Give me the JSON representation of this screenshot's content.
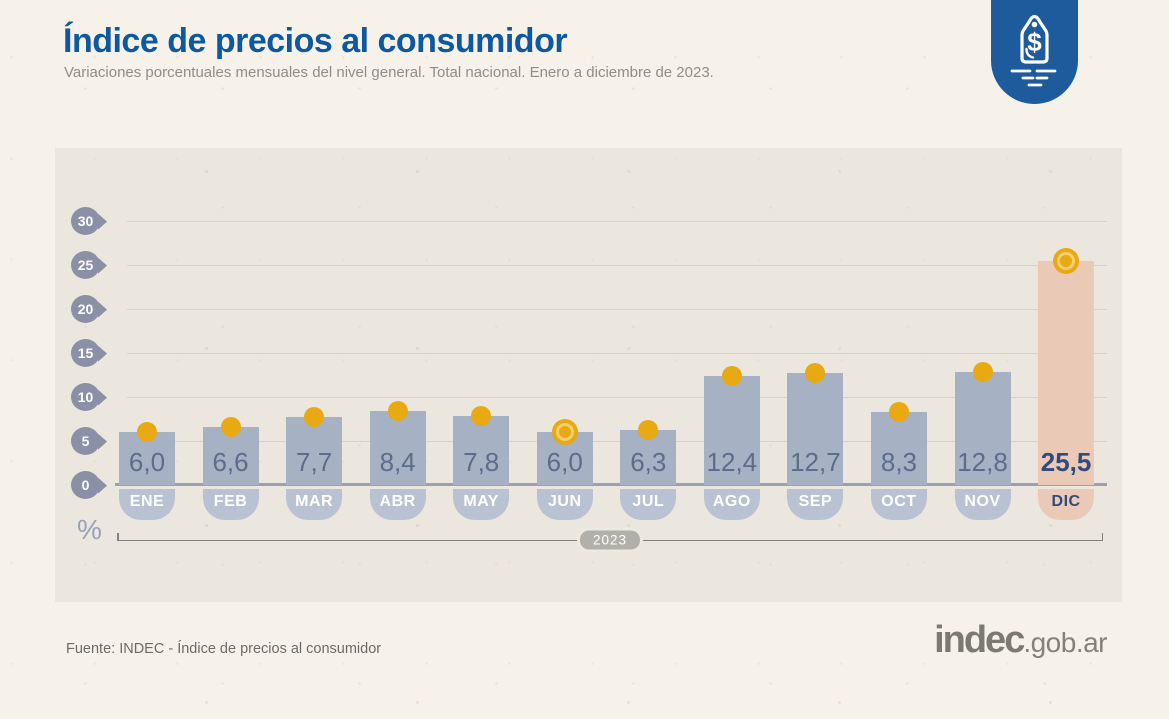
{
  "header": {
    "title": "Índice de precios al consumidor",
    "subtitle": "Variaciones porcentuales mensuales del nivel general. Total nacional. Enero a diciembre de 2023.",
    "badge_icon": "price-tag-icon"
  },
  "chart_data": {
    "type": "bar",
    "title": "Índice de precios al consumidor",
    "subtitle": "Variaciones porcentuales mensuales del nivel general. Total nacional. Enero a diciembre de 2023.",
    "unit": "%",
    "categories": [
      "ENE",
      "FEB",
      "MAR",
      "ABR",
      "MAY",
      "JUN",
      "JUL",
      "AGO",
      "SEP",
      "OCT",
      "NOV",
      "DIC"
    ],
    "values": [
      6.0,
      6.6,
      7.7,
      8.4,
      7.8,
      6.0,
      6.3,
      12.4,
      12.7,
      8.3,
      12.8,
      25.5
    ],
    "value_labels": [
      "6,0",
      "6,6",
      "7,7",
      "8,4",
      "7,8",
      "6,0",
      "6,3",
      "12,4",
      "12,7",
      "8,3",
      "12,8",
      "25,5"
    ],
    "highlight_index": 11,
    "ring_dot_indices": [
      5,
      11
    ],
    "y_ticks": [
      0,
      5,
      10,
      15,
      20,
      25,
      30
    ],
    "ylim": [
      0,
      30
    ],
    "grid": true,
    "legend": false,
    "period_label": "2023",
    "colors": {
      "bar": "#a6b1c3",
      "bar_highlight": "#ebc9b7",
      "dot": "#e9a912",
      "dot_ring_inner": "#f2cf6e",
      "value_text": "#5d6c8a",
      "highlight_text": "#2e4c7c",
      "month_tag": "#b9c2d2",
      "y_tick_tag": "#8a90a5",
      "title_blue": "#0d589f",
      "badge_blue": "#1d5b9c"
    }
  },
  "footer": {
    "source": "Fuente: INDEC - Índice de precios al consumidor",
    "logo_main": "indec",
    "logo_suffix": ".gob.ar"
  }
}
